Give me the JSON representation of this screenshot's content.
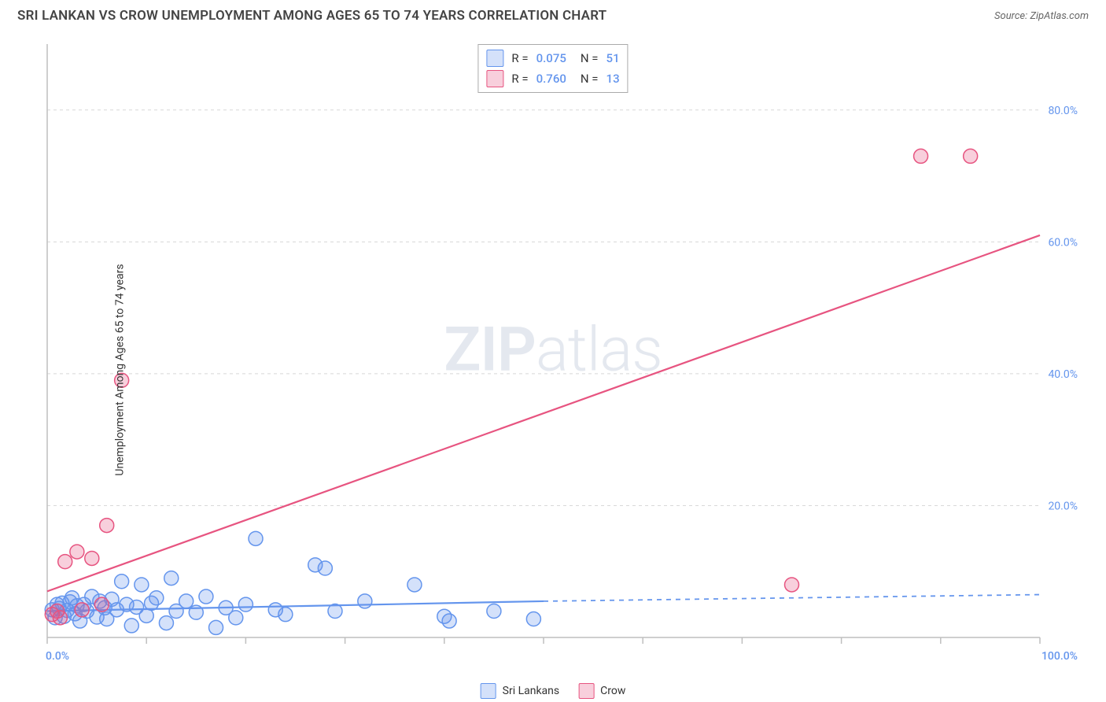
{
  "title": "SRI LANKAN VS CROW UNEMPLOYMENT AMONG AGES 65 TO 74 YEARS CORRELATION CHART",
  "source_label": "Source:",
  "source_name": "ZipAtlas.com",
  "ylabel": "Unemployment Among Ages 65 to 74 years",
  "watermark_a": "ZIP",
  "watermark_b": "atlas",
  "chart": {
    "type": "scatter",
    "background_color": "#ffffff",
    "grid_color": "#d8d8d8",
    "axis_line_color": "#bfbfbf",
    "axis_label_color": "#6495ed",
    "xlim": [
      0,
      100
    ],
    "ylim": [
      0,
      90
    ],
    "x_ticks": [
      0,
      10,
      20,
      30,
      40,
      50,
      60,
      70,
      80,
      90,
      100
    ],
    "y_grid": [
      20,
      40,
      60,
      80
    ],
    "y_tick_labels": [
      "20.0%",
      "40.0%",
      "60.0%",
      "80.0%"
    ],
    "x_origin_label": "0.0%",
    "x_max_label": "100.0%",
    "marker_radius": 9,
    "marker_stroke_width": 1.5,
    "marker_fill_opacity": 0.28,
    "line_width": 2.2,
    "series": [
      {
        "name": "Sri Lankans",
        "color": "#6495ed",
        "R": "0.075",
        "N": "51",
        "trend": {
          "x1": 0,
          "y1": 4.0,
          "x2": 50,
          "y2": 5.5,
          "dash_to_x": 100,
          "dash_to_y": 6.5
        },
        "points": [
          [
            0.5,
            4.2
          ],
          [
            0.8,
            3.0
          ],
          [
            1.0,
            5.0
          ],
          [
            1.2,
            4.4
          ],
          [
            1.5,
            5.2
          ],
          [
            1.7,
            3.2
          ],
          [
            2.0,
            4.1
          ],
          [
            2.3,
            5.4
          ],
          [
            2.5,
            6.0
          ],
          [
            2.8,
            3.6
          ],
          [
            3.0,
            4.8
          ],
          [
            3.3,
            2.5
          ],
          [
            3.7,
            5.0
          ],
          [
            4.0,
            4.0
          ],
          [
            4.5,
            6.2
          ],
          [
            5.0,
            3.1
          ],
          [
            5.3,
            5.5
          ],
          [
            5.8,
            4.5
          ],
          [
            6.0,
            2.8
          ],
          [
            6.5,
            5.8
          ],
          [
            7.0,
            4.2
          ],
          [
            7.5,
            8.5
          ],
          [
            8.0,
            5.0
          ],
          [
            8.5,
            1.8
          ],
          [
            9.0,
            4.6
          ],
          [
            9.5,
            8.0
          ],
          [
            10.0,
            3.3
          ],
          [
            10.5,
            5.2
          ],
          [
            11.0,
            6.0
          ],
          [
            12.0,
            2.2
          ],
          [
            12.5,
            9.0
          ],
          [
            13.0,
            4.0
          ],
          [
            14.0,
            5.5
          ],
          [
            15.0,
            3.8
          ],
          [
            16.0,
            6.2
          ],
          [
            17.0,
            1.5
          ],
          [
            18.0,
            4.5
          ],
          [
            19.0,
            3.0
          ],
          [
            20.0,
            5.0
          ],
          [
            21.0,
            15.0
          ],
          [
            23.0,
            4.2
          ],
          [
            24.0,
            3.5
          ],
          [
            27.0,
            11.0
          ],
          [
            28.0,
            10.5
          ],
          [
            29.0,
            4.0
          ],
          [
            32.0,
            5.5
          ],
          [
            37.0,
            8.0
          ],
          [
            40.0,
            3.2
          ],
          [
            40.5,
            2.5
          ],
          [
            45.0,
            4.0
          ],
          [
            49.0,
            2.8
          ]
        ]
      },
      {
        "name": "Crow",
        "color": "#e75480",
        "R": "0.760",
        "N": "13",
        "trend": {
          "x1": 0,
          "y1": 7.0,
          "x2": 100,
          "y2": 61.0
        },
        "points": [
          [
            0.5,
            3.5
          ],
          [
            1.0,
            4.0
          ],
          [
            1.3,
            3.0
          ],
          [
            1.8,
            11.5
          ],
          [
            3.0,
            13.0
          ],
          [
            3.5,
            4.2
          ],
          [
            4.5,
            12.0
          ],
          [
            5.5,
            5.0
          ],
          [
            6.0,
            17.0
          ],
          [
            7.5,
            39.0
          ],
          [
            75.0,
            8.0
          ],
          [
            88.0,
            73.0
          ],
          [
            93.0,
            73.0
          ]
        ]
      }
    ]
  },
  "legend": {
    "series_a": "Sri Lankans",
    "series_b": "Crow"
  },
  "stats_legend": {
    "r_label": "R =",
    "n_label": "N ="
  }
}
